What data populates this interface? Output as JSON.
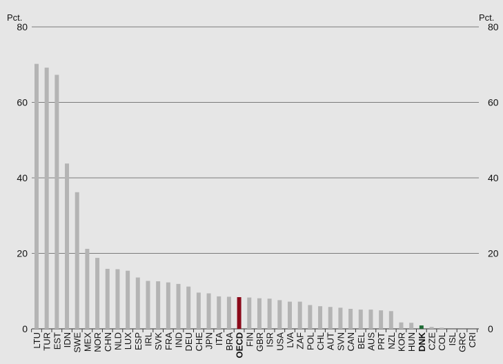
{
  "chart_data": {
    "type": "bar",
    "unit_left": "Pct.",
    "unit_right": "Pct.",
    "ylim": [
      0,
      80
    ],
    "yticks": [
      0,
      20,
      40,
      60,
      80
    ],
    "grid": true,
    "categories": [
      "LTU",
      "TUR",
      "EST",
      "IDN",
      "SWE",
      "MEX",
      "NOR",
      "CHN",
      "NLD",
      "LUX",
      "ESP",
      "IRL",
      "SVK",
      "FRA",
      "IND",
      "DEU",
      "CHE",
      "JPN",
      "ITA",
      "BRA",
      "OECD",
      "FIN",
      "GBR",
      "ISR",
      "USA",
      "LVA",
      "ZAF",
      "POL",
      "CHL",
      "AUT",
      "SVN",
      "CAN",
      "BEL",
      "AUS",
      "PRT",
      "NZL",
      "KOR",
      "HUN",
      "DNK",
      "CZE",
      "COL",
      "ISL",
      "GRC",
      "CRI"
    ],
    "values": [
      70.2,
      69.2,
      67.3,
      43.8,
      36.2,
      21.2,
      18.8,
      15.9,
      15.8,
      15.4,
      13.6,
      12.7,
      12.6,
      12.3,
      11.9,
      11.2,
      9.6,
      9.4,
      8.6,
      8.5,
      8.4,
      8.3,
      8.1,
      8.0,
      7.6,
      7.2,
      7.2,
      6.3,
      6.0,
      5.8,
      5.6,
      5.3,
      5.1,
      5.1,
      4.9,
      4.7,
      1.7,
      1.6,
      0.9,
      0.5,
      0.3,
      0.0,
      0.0,
      0.0
    ],
    "highlight": {
      "OECD": "#8b0a1a",
      "DNK": "#1f6b35"
    },
    "bold_categories": [
      "OECD",
      "DNK"
    ],
    "colors": {
      "default_bar": "#b4b4b4",
      "gridline": "#7a7a7a",
      "axis": "#333333",
      "background": "#e6e6e6"
    }
  }
}
